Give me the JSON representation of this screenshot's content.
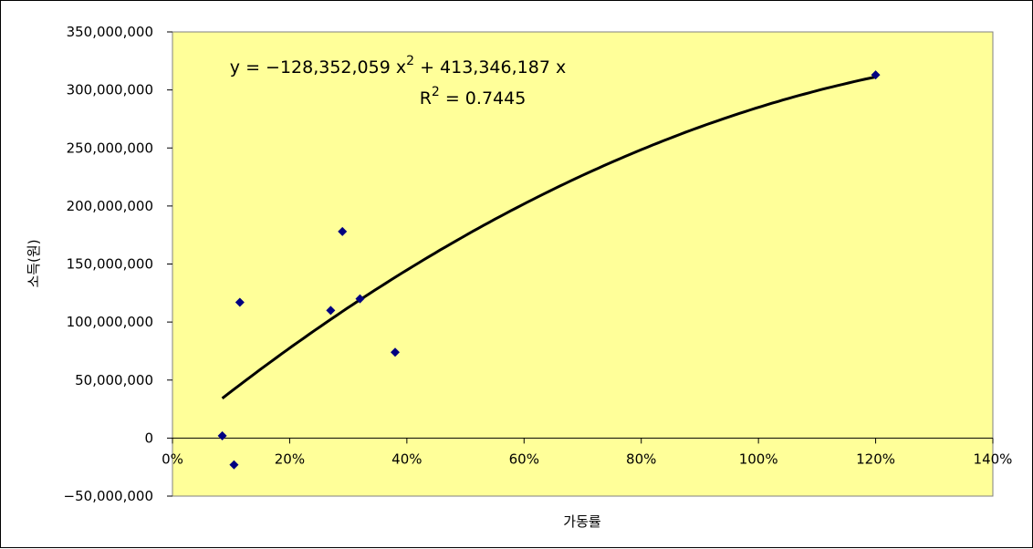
{
  "chart_data": {
    "type": "scatter",
    "title": "",
    "xlabel": "가동률",
    "ylabel": "소득(원)",
    "xlim": [
      0,
      1.4
    ],
    "ylim": [
      -50000000,
      350000000
    ],
    "x_ticks": [
      "0%",
      "20%",
      "40%",
      "60%",
      "80%",
      "100%",
      "120%",
      "140%"
    ],
    "y_ticks": [
      "350,000,000",
      "300,000,000",
      "250,000,000",
      "200,000,000",
      "150,000,000",
      "100,000,000",
      "50,000,000",
      "0",
      "−50,000,000"
    ],
    "plot_background": "#ffff99",
    "marker_color": "#000080",
    "trendline_color": "#000000",
    "points": [
      {
        "x": 0.085,
        "y": 2000000
      },
      {
        "x": 0.105,
        "y": -23000000
      },
      {
        "x": 0.115,
        "y": 117000000
      },
      {
        "x": 0.27,
        "y": 110000000
      },
      {
        "x": 0.29,
        "y": 178000000
      },
      {
        "x": 0.32,
        "y": 120000000
      },
      {
        "x": 0.38,
        "y": 74000000
      },
      {
        "x": 1.2,
        "y": 313000000
      }
    ],
    "trendline": {
      "type": "polynomial",
      "order": 2,
      "a": -128352059,
      "b": 413346187,
      "x_range": [
        0.085,
        1.2
      ],
      "equation_parts": [
        "y = −128,352,059 x",
        "2",
        " + 413,346,187 x"
      ],
      "r2_parts": [
        "R",
        "2",
        " = 0.7445"
      ]
    }
  }
}
